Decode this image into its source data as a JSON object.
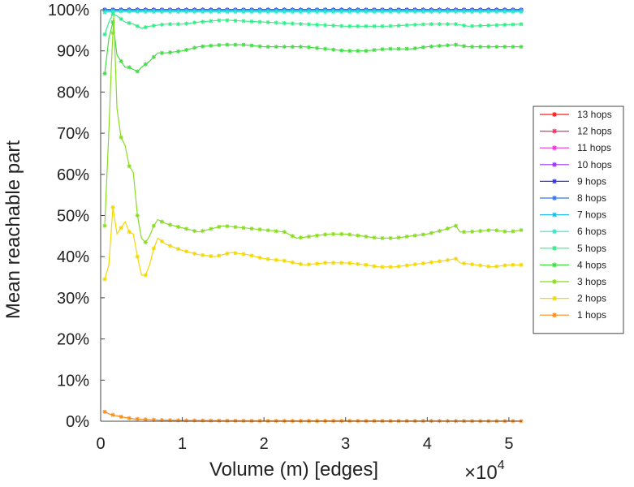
{
  "chart_data": {
    "type": "line",
    "title": "",
    "xlabel": "Volume (m) [edges]",
    "ylabel": "Mean reachable part",
    "x_exponent_label": "×10",
    "x_exponent": "4",
    "xlim": [
      0,
      51600
    ],
    "ylim": [
      0,
      100
    ],
    "x_ticks": [
      0,
      10000,
      20000,
      30000,
      40000,
      50000
    ],
    "x_tick_labels": [
      "0",
      "1",
      "2",
      "3",
      "4",
      "5"
    ],
    "y_ticks": [
      0,
      10,
      20,
      30,
      40,
      50,
      60,
      70,
      80,
      90,
      100
    ],
    "y_tick_labels": [
      "0%",
      "10%",
      "20%",
      "30%",
      "40%",
      "50%",
      "60%",
      "70%",
      "80%",
      "90%",
      "100%"
    ],
    "legend_position": "right",
    "grid": false,
    "series": [
      {
        "name": "13 hops",
        "color": "#ff1a1a",
        "points": [
          [
            500,
            100
          ],
          [
            2000,
            100
          ],
          [
            5000,
            100
          ],
          [
            10000,
            100
          ],
          [
            20000,
            100
          ],
          [
            30000,
            100
          ],
          [
            40000,
            100
          ],
          [
            51600,
            100
          ]
        ]
      },
      {
        "name": "12 hops",
        "color": "#ff2a6a",
        "points": [
          [
            500,
            100
          ],
          [
            2000,
            100
          ],
          [
            5000,
            100
          ],
          [
            10000,
            100
          ],
          [
            20000,
            100
          ],
          [
            30000,
            100
          ],
          [
            40000,
            100
          ],
          [
            51600,
            100
          ]
        ]
      },
      {
        "name": "11 hops",
        "color": "#ee33dd",
        "points": [
          [
            500,
            100
          ],
          [
            2000,
            100
          ],
          [
            5000,
            100
          ],
          [
            10000,
            100
          ],
          [
            20000,
            100
          ],
          [
            30000,
            100
          ],
          [
            40000,
            100
          ],
          [
            51600,
            100
          ]
        ]
      },
      {
        "name": "10 hops",
        "color": "#9933ff",
        "points": [
          [
            500,
            100
          ],
          [
            2000,
            100
          ],
          [
            5000,
            100
          ],
          [
            10000,
            100
          ],
          [
            20000,
            100
          ],
          [
            30000,
            100
          ],
          [
            40000,
            100
          ],
          [
            51600,
            100
          ]
        ]
      },
      {
        "name": "9 hops",
        "color": "#3333ee",
        "points": [
          [
            500,
            100
          ],
          [
            2000,
            100
          ],
          [
            5000,
            100
          ],
          [
            10000,
            100
          ],
          [
            20000,
            100
          ],
          [
            30000,
            100
          ],
          [
            40000,
            100
          ],
          [
            51600,
            100
          ]
        ]
      },
      {
        "name": "8 hops",
        "color": "#3377ee",
        "points": [
          [
            500,
            99.9
          ],
          [
            2000,
            99.9
          ],
          [
            5000,
            99.9
          ],
          [
            10000,
            99.9
          ],
          [
            20000,
            99.9
          ],
          [
            30000,
            99.9
          ],
          [
            40000,
            99.9
          ],
          [
            51600,
            99.9
          ]
        ]
      },
      {
        "name": "7 hops",
        "color": "#22bbee",
        "points": [
          [
            500,
            99.8
          ],
          [
            2000,
            99.8
          ],
          [
            5000,
            99.8
          ],
          [
            10000,
            99.8
          ],
          [
            20000,
            99.8
          ],
          [
            30000,
            99.8
          ],
          [
            40000,
            99.8
          ],
          [
            51600,
            99.8
          ]
        ]
      },
      {
        "name": "6 hops",
        "color": "#33e6cc",
        "points": [
          [
            500,
            99.4
          ],
          [
            1000,
            99.5
          ],
          [
            2000,
            99.6
          ],
          [
            5000,
            99.5
          ],
          [
            10000,
            99.5
          ],
          [
            20000,
            99.5
          ],
          [
            30000,
            99.5
          ],
          [
            40000,
            99.5
          ],
          [
            51600,
            99.5
          ]
        ]
      },
      {
        "name": "5 hops",
        "color": "#33ee88",
        "points": [
          [
            500,
            94
          ],
          [
            1000,
            97
          ],
          [
            1500,
            99
          ],
          [
            2000,
            98.5
          ],
          [
            3000,
            97
          ],
          [
            4000,
            96.5
          ],
          [
            5000,
            95.5
          ],
          [
            6000,
            96
          ],
          [
            8000,
            96.5
          ],
          [
            10000,
            96.5
          ],
          [
            12000,
            97
          ],
          [
            15000,
            97.5
          ],
          [
            20000,
            97
          ],
          [
            25000,
            96.5
          ],
          [
            30000,
            96
          ],
          [
            35000,
            96
          ],
          [
            40000,
            96.5
          ],
          [
            43500,
            96.5
          ],
          [
            45000,
            96
          ],
          [
            51600,
            96.5
          ]
        ]
      },
      {
        "name": "4 hops",
        "color": "#44dd44",
        "points": [
          [
            500,
            84.5
          ],
          [
            1000,
            93
          ],
          [
            1500,
            97
          ],
          [
            2000,
            89
          ],
          [
            2500,
            87.5
          ],
          [
            3000,
            86
          ],
          [
            3500,
            86
          ],
          [
            4000,
            85.5
          ],
          [
            4500,
            85
          ],
          [
            5000,
            86
          ],
          [
            6000,
            87.5
          ],
          [
            7000,
            89.5
          ],
          [
            8000,
            89.5
          ],
          [
            10000,
            90
          ],
          [
            12000,
            91
          ],
          [
            15000,
            91.5
          ],
          [
            17500,
            91.5
          ],
          [
            20000,
            91
          ],
          [
            22500,
            91
          ],
          [
            25000,
            91
          ],
          [
            27500,
            90.5
          ],
          [
            30000,
            90
          ],
          [
            32500,
            90
          ],
          [
            35000,
            90.5
          ],
          [
            38000,
            90.5
          ],
          [
            40000,
            91
          ],
          [
            43500,
            91.5
          ],
          [
            45000,
            91
          ],
          [
            51600,
            91
          ]
        ]
      },
      {
        "name": "3 hops",
        "color": "#88dd22",
        "points": [
          [
            500,
            47.5
          ],
          [
            1000,
            70.5
          ],
          [
            1300,
            86
          ],
          [
            1600,
            98.5
          ],
          [
            2000,
            76
          ],
          [
            2500,
            69
          ],
          [
            3000,
            67
          ],
          [
            3500,
            62
          ],
          [
            4000,
            60.5
          ],
          [
            4500,
            50
          ],
          [
            5000,
            44.5
          ],
          [
            5500,
            43.5
          ],
          [
            6000,
            45
          ],
          [
            6500,
            47.5
          ],
          [
            7000,
            49
          ],
          [
            8000,
            48
          ],
          [
            10000,
            47
          ],
          [
            12000,
            46
          ],
          [
            15000,
            47.5
          ],
          [
            17500,
            47
          ],
          [
            20000,
            46.5
          ],
          [
            22500,
            46
          ],
          [
            24000,
            44.5
          ],
          [
            26000,
            45
          ],
          [
            28000,
            45.5
          ],
          [
            30000,
            45.5
          ],
          [
            32000,
            45
          ],
          [
            34000,
            44.5
          ],
          [
            36000,
            44.5
          ],
          [
            38000,
            45
          ],
          [
            40000,
            45.5
          ],
          [
            42000,
            46.5
          ],
          [
            43500,
            47.5
          ],
          [
            44000,
            46
          ],
          [
            45000,
            46
          ],
          [
            48000,
            46.5
          ],
          [
            50000,
            46
          ],
          [
            51600,
            46.5
          ]
        ]
      },
      {
        "name": "2 hops",
        "color": "#f5d800",
        "points": [
          [
            500,
            34.5
          ],
          [
            1000,
            38
          ],
          [
            1500,
            52
          ],
          [
            2000,
            45.5
          ],
          [
            2500,
            47
          ],
          [
            3000,
            48.5
          ],
          [
            3500,
            46
          ],
          [
            4000,
            45.5
          ],
          [
            4500,
            40
          ],
          [
            5000,
            35.5
          ],
          [
            5500,
            35.5
          ],
          [
            6000,
            38
          ],
          [
            6500,
            42
          ],
          [
            7000,
            44.5
          ],
          [
            8000,
            43
          ],
          [
            10000,
            41.5
          ],
          [
            12000,
            40.5
          ],
          [
            14000,
            40
          ],
          [
            16000,
            41
          ],
          [
            18000,
            40.5
          ],
          [
            20000,
            39.5
          ],
          [
            22500,
            39
          ],
          [
            25000,
            38
          ],
          [
            27500,
            38.5
          ],
          [
            30000,
            38.5
          ],
          [
            32500,
            38
          ],
          [
            34000,
            37.5
          ],
          [
            36000,
            37.5
          ],
          [
            38000,
            38
          ],
          [
            40000,
            38.5
          ],
          [
            42000,
            39
          ],
          [
            43500,
            39.5
          ],
          [
            44000,
            38.5
          ],
          [
            46000,
            38
          ],
          [
            48000,
            37.5
          ],
          [
            50000,
            38
          ],
          [
            51600,
            38
          ]
        ]
      },
      {
        "name": "1 hops",
        "color": "#ff8c1a",
        "points": [
          [
            500,
            2.3
          ],
          [
            1000,
            1.8
          ],
          [
            2000,
            1.3
          ],
          [
            3000,
            0.9
          ],
          [
            4000,
            0.6
          ],
          [
            5000,
            0.5
          ],
          [
            7000,
            0.3
          ],
          [
            10000,
            0.2
          ],
          [
            15000,
            0.15
          ],
          [
            20000,
            0.1
          ],
          [
            30000,
            0.1
          ],
          [
            40000,
            0.08
          ],
          [
            51600,
            0.05
          ]
        ]
      }
    ]
  }
}
